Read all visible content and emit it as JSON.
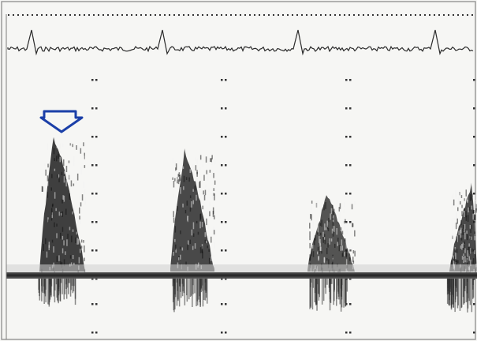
{
  "image": {
    "kind": "doppler-spectral-tracing",
    "colors": {
      "background": "#f6f6f4",
      "trace": "#2a2a2a",
      "signal": "#1e1e1e",
      "baseline": "#2b2b2b",
      "arrow": "#1b3fa8",
      "border": "#9a9a9a"
    },
    "icons": {
      "marker": "arrow-down-icon"
    }
  }
}
